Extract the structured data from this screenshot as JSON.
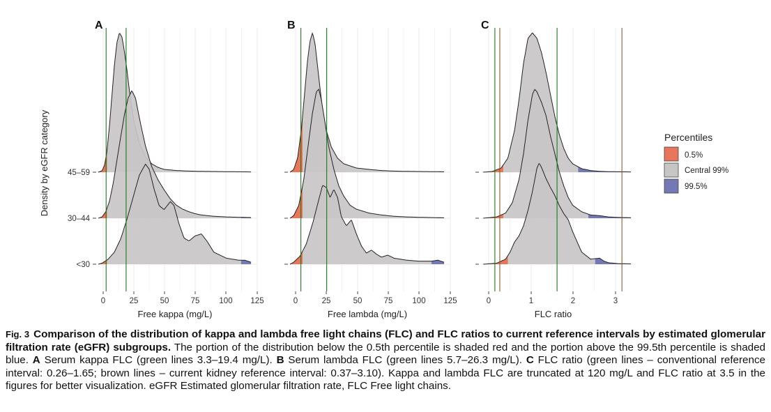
{
  "chart_data": [
    {
      "type": "area",
      "panel": "A",
      "xlabel": "Free kappa (mg/L)",
      "ylabel": "Density by eGFR category",
      "x_ticks": [
        "0",
        "25",
        "50",
        "75",
        "100",
        "125"
      ],
      "xlim": [
        -3,
        125
      ],
      "categories": [
        "45–59",
        "30–44",
        "<30"
      ],
      "reference_lines": [
        {
          "color": "#1a7a1a",
          "values": [
            3.3,
            19.4
          ]
        }
      ],
      "percentile_cut": {
        "low": 4,
        "high": {
          "45–59": 115,
          "30–44": 112,
          "<30": 112
        }
      },
      "series": [
        {
          "category": "45–59",
          "x": [
            -3,
            0,
            2,
            4,
            6,
            8,
            10,
            12,
            14,
            16,
            18,
            20,
            22,
            24,
            26,
            30,
            35,
            40,
            45,
            50,
            60,
            70,
            80,
            90,
            100,
            110,
            120
          ],
          "density": [
            0,
            0.01,
            0.05,
            0.15,
            0.33,
            0.55,
            0.77,
            0.93,
            1.0,
            0.97,
            0.87,
            0.74,
            0.59,
            0.46,
            0.35,
            0.21,
            0.11,
            0.06,
            0.035,
            0.02,
            0.012,
            0.008,
            0.006,
            0.005,
            0.004,
            0.003,
            0.002
          ]
        },
        {
          "category": "30–44",
          "x": [
            -3,
            0,
            3,
            6,
            9,
            12,
            15,
            18,
            21,
            24,
            27,
            30,
            35,
            40,
            45,
            50,
            55,
            60,
            65,
            70,
            75,
            80,
            85,
            90,
            100,
            110,
            120
          ],
          "density": [
            0,
            0.01,
            0.05,
            0.13,
            0.27,
            0.45,
            0.63,
            0.8,
            0.93,
            0.99,
            0.93,
            0.78,
            0.56,
            0.4,
            0.3,
            0.22,
            0.15,
            0.1,
            0.07,
            0.05,
            0.035,
            0.025,
            0.02,
            0.015,
            0.01,
            0.007,
            0.005
          ]
        },
        {
          "category": "<30",
          "x": [
            -3,
            0,
            5,
            10,
            15,
            20,
            25,
            30,
            35,
            38,
            42,
            46,
            50,
            55,
            58,
            62,
            66,
            70,
            75,
            80,
            85,
            90,
            100,
            110,
            115,
            120
          ],
          "density": [
            0,
            0.01,
            0.05,
            0.12,
            0.25,
            0.44,
            0.66,
            0.88,
            0.99,
            0.94,
            0.74,
            0.58,
            0.54,
            0.62,
            0.58,
            0.4,
            0.26,
            0.23,
            0.28,
            0.3,
            0.22,
            0.12,
            0.06,
            0.04,
            0.04,
            0.02
          ]
        }
      ]
    },
    {
      "type": "area",
      "panel": "B",
      "xlabel": "Free lambda (mg/L)",
      "ylabel": "",
      "x_ticks": [
        "0",
        "25",
        "50",
        "75",
        "100",
        "125"
      ],
      "xlim": [
        -3,
        125
      ],
      "categories": [
        "45–59",
        "30–44",
        "<30"
      ],
      "reference_lines": [
        {
          "color": "#1a7a1a",
          "values": [
            5.7,
            26.3
          ]
        }
      ],
      "percentile_cut": {
        "low": 7,
        "high": {
          "45–59": 116,
          "30–44": 114,
          "<30": 110
        }
      },
      "series": [
        {
          "category": "45–59",
          "x": [
            -3,
            0,
            3,
            6,
            9,
            11,
            13,
            15,
            17,
            19,
            21,
            23,
            26,
            30,
            35,
            40,
            50,
            60,
            70,
            80,
            90,
            100,
            110,
            120
          ],
          "density": [
            0,
            0.02,
            0.1,
            0.3,
            0.6,
            0.8,
            0.94,
            1.0,
            0.92,
            0.76,
            0.6,
            0.45,
            0.3,
            0.18,
            0.1,
            0.06,
            0.03,
            0.02,
            0.012,
            0.008,
            0.006,
            0.005,
            0.004,
            0.003
          ]
        },
        {
          "category": "30–44",
          "x": [
            -3,
            0,
            4,
            8,
            12,
            15,
            18,
            20,
            22,
            25,
            28,
            32,
            36,
            40,
            45,
            50,
            60,
            70,
            80,
            90,
            100,
            110,
            120
          ],
          "density": [
            0,
            0.02,
            0.1,
            0.3,
            0.6,
            0.82,
            0.98,
            1.0,
            0.92,
            0.74,
            0.55,
            0.38,
            0.25,
            0.17,
            0.1,
            0.07,
            0.04,
            0.025,
            0.015,
            0.01,
            0.007,
            0.005,
            0.003
          ]
        },
        {
          "category": "<30",
          "x": [
            -3,
            0,
            5,
            10,
            15,
            20,
            23,
            26,
            29,
            32,
            35,
            38,
            42,
            46,
            50,
            54,
            58,
            62,
            66,
            70,
            75,
            80,
            90,
            100,
            110,
            115,
            120
          ],
          "density": [
            0,
            0.02,
            0.08,
            0.2,
            0.4,
            0.64,
            0.78,
            0.76,
            0.66,
            0.74,
            0.66,
            0.47,
            0.38,
            0.44,
            0.3,
            0.18,
            0.11,
            0.14,
            0.1,
            0.07,
            0.09,
            0.06,
            0.04,
            0.03,
            0.03,
            0.04,
            0.02
          ]
        }
      ]
    },
    {
      "type": "area",
      "panel": "C",
      "xlabel": "FLC ratio",
      "ylabel": "",
      "x_ticks": [
        "0",
        "1",
        "2",
        "3"
      ],
      "xlim": [
        -0.05,
        3.3
      ],
      "categories": [
        "45–59",
        "30–44",
        "<30"
      ],
      "reference_lines": [
        {
          "color": "#1a7a1a",
          "values": [
            0.26,
            1.65
          ]
        },
        {
          "color": "#8b5a2b",
          "values": [
            0.37,
            3.1
          ]
        }
      ],
      "percentile_cut": {
        "low": {
          "45–59": 0.45,
          "30–44": 0.45,
          "<30": 0.55
        },
        "high": {
          "45–59": 2.12,
          "30–44": 2.35,
          "<30": 2.5
        }
      },
      "series": [
        {
          "category": "45–59",
          "x": [
            0,
            0.2,
            0.4,
            0.55,
            0.7,
            0.8,
            0.9,
            1.0,
            1.1,
            1.2,
            1.3,
            1.4,
            1.5,
            1.6,
            1.7,
            1.8,
            1.9,
            2.0,
            2.2,
            2.4,
            2.6,
            2.8,
            3.0,
            3.3
          ],
          "density": [
            0,
            0.005,
            0.03,
            0.1,
            0.3,
            0.52,
            0.78,
            0.96,
            1.0,
            0.96,
            0.86,
            0.72,
            0.56,
            0.4,
            0.27,
            0.17,
            0.1,
            0.06,
            0.025,
            0.012,
            0.006,
            0.004,
            0.003,
            0.002
          ]
        },
        {
          "category": "30–44",
          "x": [
            0,
            0.3,
            0.5,
            0.65,
            0.8,
            0.9,
            1.0,
            1.1,
            1.15,
            1.2,
            1.3,
            1.4,
            1.5,
            1.6,
            1.7,
            1.8,
            1.9,
            2.0,
            2.2,
            2.4,
            2.6,
            2.8,
            3.0,
            3.3
          ],
          "density": [
            0,
            0.01,
            0.04,
            0.12,
            0.3,
            0.5,
            0.76,
            0.96,
            1.0,
            0.98,
            0.9,
            0.8,
            0.64,
            0.5,
            0.36,
            0.25,
            0.16,
            0.1,
            0.05,
            0.025,
            0.02,
            0.01,
            0.006,
            0.004
          ]
        },
        {
          "category": "<30",
          "x": [
            0,
            0.3,
            0.5,
            0.6,
            0.7,
            0.8,
            0.9,
            1.0,
            1.1,
            1.2,
            1.25,
            1.3,
            1.4,
            1.5,
            1.6,
            1.7,
            1.8,
            1.9,
            2.0,
            2.2,
            2.4,
            2.6,
            2.7,
            2.8,
            3.0,
            3.3
          ],
          "density": [
            0,
            0.01,
            0.05,
            0.12,
            0.22,
            0.28,
            0.38,
            0.53,
            0.72,
            0.95,
            1.0,
            0.96,
            0.85,
            0.76,
            0.68,
            0.58,
            0.5,
            0.44,
            0.32,
            0.12,
            0.05,
            0.06,
            0.03,
            0.015,
            0.006,
            0.003
          ]
        }
      ]
    }
  ],
  "legend": {
    "title": "Percentiles",
    "placement": "right",
    "items": [
      {
        "label": "0.5%",
        "color": "#e8765a"
      },
      {
        "label": "Central 99%",
        "color": "#c8c5c5"
      },
      {
        "label": "99.5%",
        "color": "#7479b6"
      }
    ]
  },
  "colors": {
    "low_tail": "#e8765a",
    "central": "#c8c5c5",
    "high_tail": "#7479b6",
    "grid": "#ebebeb",
    "curve": "#222222"
  },
  "caption": {
    "fig_label": "Fig. 3",
    "title": "Comparison of the distribution of kappa and lambda free light chains (FLC) and FLC ratios to current reference intervals by estimated glomerular filtration rate (eGFR) subgroups.",
    "text1": " The portion of the distribution below the 0.5th percentile is shaded red and the portion above the 99.5th percentile is shaded blue. ",
    "label_a": "A",
    "text_a": " Serum kappa FLC (green lines 3.3–19.4 mg/L). ",
    "label_b": "B",
    "text_b": " Serum lambda FLC (green lines 5.7–26.3 mg/L). ",
    "label_c": "C",
    "text_c": " FLC ratio (green lines – conventional reference interval: 0.26–1.65; brown lines – current kidney reference interval: 0.37–3.10). Kappa and lambda FLC are truncated at 120 mg/L and FLC ratio at 3.5 in the figures for better visualization. eGFR Estimated glomerular filtration rate, FLC Free light chains."
  }
}
